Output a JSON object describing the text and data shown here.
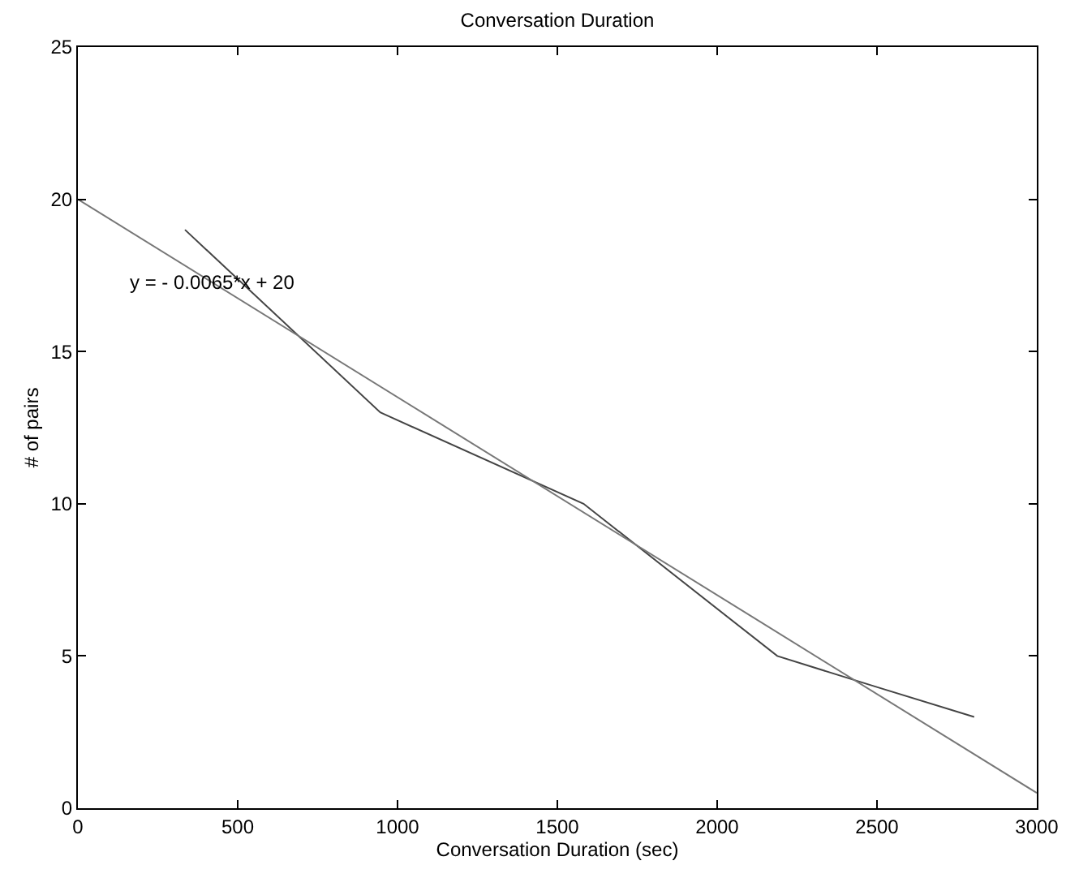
{
  "chart_data": {
    "type": "line",
    "title": "Conversation Duration",
    "xlabel": "Conversation Duration (sec)",
    "ylabel": "# of pairs",
    "x": [
      335,
      946,
      1582,
      2188,
      2493,
      2804
    ],
    "series": [
      {
        "color": "#444444",
        "values": [
          19,
          13,
          10,
          5,
          4,
          3
        ]
      },
      {
        "type": "line",
        "color": "#777777",
        "x": [
          0,
          3000
        ],
        "values": [
          20,
          0.5
        ]
      }
    ],
    "xlim": [
      0,
      3000
    ],
    "xticks": [
      0,
      500,
      1000,
      1500,
      2000,
      2500,
      3000
    ],
    "ylim": [
      0,
      25
    ],
    "yticks": [
      0,
      5,
      10,
      15,
      20,
      25
    ],
    "annotations": [
      "y = - 0.0065*x + 20"
    ],
    "marker": "none",
    "line_style": "solid"
  }
}
